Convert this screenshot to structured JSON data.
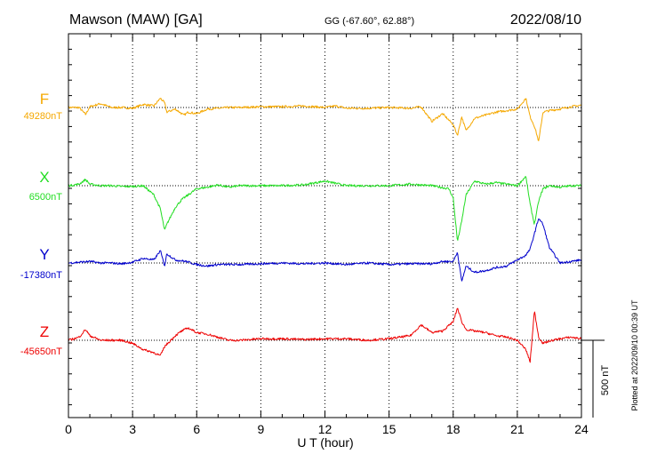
{
  "header": {
    "station": "Mawson (MAW)  [GA]",
    "coords": "GG (-67.60°,  62.88°)",
    "date": "2022/08/10"
  },
  "side_note": "Plotted at 2022/09/10 00:39 UT",
  "chart_data": {
    "type": "line",
    "xlabel": "U T (hour)",
    "xlim": [
      0,
      24
    ],
    "xticks": [
      "0",
      "3",
      "6",
      "9",
      "12",
      "15",
      "18",
      "21",
      "24"
    ],
    "scale_bar": {
      "label": "500 nT",
      "value_nT": 500
    },
    "grid": "dotted vertical lines every 3 hours; dotted baseline per component",
    "series": [
      {
        "name": "F",
        "baseline_label": "49280nT",
        "baseline": 49280,
        "color": "#f5a800",
        "x": [
          0,
          0.5,
          0.8,
          1,
          1.5,
          2,
          2.5,
          3,
          3.5,
          4,
          4.3,
          4.5,
          4.6,
          5,
          5.4,
          5.6,
          6,
          6.5,
          7,
          7.5,
          8,
          9,
          10,
          11,
          12,
          12.5,
          13,
          14,
          15,
          16,
          16.5,
          17,
          17.5,
          18,
          18.2,
          18.4,
          18.6,
          19,
          19.5,
          20,
          20.5,
          21,
          21.4,
          21.6,
          21.8,
          22,
          22.2,
          22.5,
          23,
          23.5,
          24
        ],
        "dev_nT": [
          0,
          0,
          -45,
          5,
          25,
          0,
          0,
          -5,
          20,
          10,
          60,
          30,
          -30,
          -10,
          -50,
          -30,
          -40,
          -10,
          -5,
          0,
          0,
          5,
          5,
          10,
          0,
          10,
          -5,
          -5,
          0,
          -5,
          5,
          -90,
          -40,
          -110,
          -180,
          -60,
          -150,
          -70,
          -50,
          -30,
          -20,
          -10,
          60,
          -60,
          -120,
          -220,
          -30,
          -20,
          -10,
          5,
          15
        ]
      },
      {
        "name": "X",
        "baseline_label": "6500nT",
        "baseline": 6500,
        "color": "#22dd22",
        "x": [
          0,
          0.5,
          0.8,
          1,
          1.5,
          2,
          2.5,
          3,
          3.5,
          4,
          4.3,
          4.5,
          4.6,
          5,
          5.3,
          5.6,
          6,
          6.5,
          7,
          7.5,
          8,
          9,
          10,
          11,
          12,
          13,
          14,
          15,
          16,
          17,
          17.8,
          18,
          18.2,
          18.4,
          18.6,
          19,
          19.5,
          20,
          20.5,
          21,
          21.4,
          21.6,
          21.8,
          22,
          22.2,
          22.5,
          23,
          23.5,
          24
        ],
        "dev_nT": [
          0,
          10,
          40,
          10,
          0,
          0,
          -5,
          -5,
          0,
          -60,
          -150,
          -290,
          -250,
          -140,
          -90,
          -60,
          -20,
          -10,
          5,
          -10,
          0,
          0,
          0,
          5,
          30,
          0,
          0,
          0,
          10,
          0,
          -20,
          -80,
          -360,
          -230,
          -60,
          30,
          10,
          20,
          10,
          0,
          60,
          -120,
          -250,
          -100,
          -20,
          0,
          -10,
          0,
          0
        ]
      },
      {
        "name": "Y",
        "baseline_label": "-17380nT",
        "baseline": -17380,
        "color": "#0000cc",
        "x": [
          0,
          0.5,
          1,
          1.5,
          2,
          2.5,
          3,
          3.5,
          4,
          4.3,
          4.5,
          4.6,
          5,
          5.5,
          6,
          6.5,
          7,
          8,
          9,
          10,
          11,
          12,
          13,
          14,
          15,
          16,
          17,
          17.5,
          18,
          18.2,
          18.4,
          18.6,
          19,
          19.5,
          20,
          20.5,
          21,
          21.4,
          21.6,
          21.8,
          22,
          22.2,
          22.5,
          23,
          23.5,
          24
        ],
        "dev_nT": [
          0,
          5,
          10,
          0,
          0,
          -5,
          5,
          30,
          20,
          80,
          -20,
          60,
          20,
          10,
          -10,
          -20,
          -10,
          -10,
          -5,
          0,
          -5,
          0,
          -10,
          0,
          -10,
          -5,
          -5,
          10,
          10,
          70,
          -120,
          -20,
          -60,
          -50,
          -30,
          -20,
          20,
          50,
          90,
          190,
          290,
          250,
          100,
          0,
          10,
          20
        ]
      },
      {
        "name": "Z",
        "baseline_label": "-45650nT",
        "baseline": -45650,
        "color": "#ee0000",
        "x": [
          0,
          0.5,
          0.8,
          1,
          1.5,
          2,
          2.5,
          3,
          3.5,
          4,
          4.3,
          4.5,
          5,
          5.3,
          5.6,
          6,
          6.5,
          7,
          7.5,
          8,
          9,
          10,
          11,
          12,
          13,
          14,
          15,
          16,
          16.5,
          17,
          17.5,
          18,
          18.2,
          18.4,
          18.6,
          19,
          19.5,
          20,
          20.5,
          21,
          21.4,
          21.6,
          21.8,
          22,
          22.2,
          22.5,
          23,
          23.5,
          24
        ],
        "dev_nT": [
          0,
          20,
          70,
          30,
          0,
          0,
          0,
          -20,
          -60,
          -80,
          -100,
          -40,
          30,
          60,
          80,
          50,
          40,
          20,
          0,
          0,
          10,
          10,
          5,
          10,
          10,
          0,
          10,
          30,
          100,
          50,
          60,
          120,
          210,
          120,
          70,
          60,
          50,
          30,
          20,
          0,
          -60,
          -140,
          190,
          20,
          -20,
          -5,
          10,
          20,
          10
        ]
      }
    ]
  }
}
